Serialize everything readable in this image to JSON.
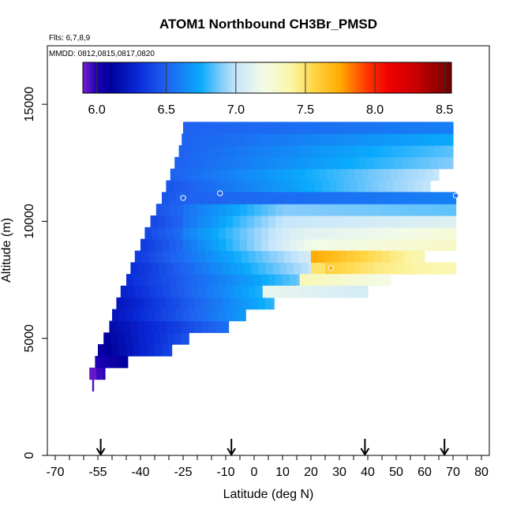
{
  "chart_data": {
    "type": "heatmap",
    "title": "ATOM1 Northbound CH3Br_PMSD",
    "flights_label": "Flts: 6,7,8,9",
    "dates_label": "MMDD: 0812,0815,0817,0820",
    "xlabel": "Latitude (deg N)",
    "ylabel": "Altitude (m)",
    "xlim": [
      -70,
      80
    ],
    "ylim": [
      0,
      17500
    ],
    "x_ticks": [
      -70,
      -55,
      -40,
      -25,
      -10,
      0,
      10,
      20,
      30,
      40,
      50,
      60,
      70,
      80
    ],
    "x_tick_labels": [
      "-70",
      "-55",
      "-40",
      "-25",
      "-10",
      "0",
      "10",
      "20",
      "30",
      "40",
      "50",
      "60",
      "70",
      "80"
    ],
    "y_ticks": [
      0,
      5000,
      10000,
      15000
    ],
    "y_tick_labels": [
      "0",
      "5000",
      "10000",
      "15000"
    ],
    "colorbar": {
      "min": 5.9,
      "max": 8.55,
      "ticks": [
        6.0,
        6.5,
        7.0,
        7.5,
        8.0,
        8.5
      ],
      "tick_labels": [
        "6.0",
        "6.5",
        "7.0",
        "7.5",
        "8.0",
        "8.5"
      ],
      "colors": [
        {
          "v": 5.9,
          "c": "#7a1fd2"
        },
        {
          "v": 6.0,
          "c": "#1c00b5"
        },
        {
          "v": 6.1,
          "c": "#00009a"
        },
        {
          "v": 6.3,
          "c": "#0a2ad8"
        },
        {
          "v": 6.5,
          "c": "#1f62f0"
        },
        {
          "v": 6.75,
          "c": "#0aaafc"
        },
        {
          "v": 6.9,
          "c": "#86cdfb"
        },
        {
          "v": 7.0,
          "c": "#c8e6fb"
        },
        {
          "v": 7.2,
          "c": "#f3fbe8"
        },
        {
          "v": 7.4,
          "c": "#fbf5a6"
        },
        {
          "v": 7.55,
          "c": "#ffd84a"
        },
        {
          "v": 7.75,
          "c": "#ffaa00"
        },
        {
          "v": 7.95,
          "c": "#ff3300"
        },
        {
          "v": 8.1,
          "c": "#f00000"
        },
        {
          "v": 8.3,
          "c": "#c80000"
        },
        {
          "v": 8.55,
          "c": "#6e0000"
        }
      ]
    },
    "band_height": 500,
    "bands": [
      {
        "alt": 3000,
        "xmin": -57,
        "xmax": -56.5,
        "vL": 5.95,
        "vR": 5.95
      },
      {
        "alt": 3500,
        "xmin": -58,
        "xmax": -52.5,
        "vL": 5.9,
        "vR": 6.0
      },
      {
        "alt": 4000,
        "xmin": -56,
        "xmax": -44.5,
        "vL": 6.0,
        "vR": 6.1
      },
      {
        "alt": 4500,
        "xmin": -55,
        "xmax": -29,
        "vL": 6.05,
        "vR": 6.4
      },
      {
        "alt": 5000,
        "xmin": -53,
        "xmax": -23,
        "vL": 6.1,
        "vR": 6.45
      },
      {
        "alt": 5500,
        "xmin": -51,
        "xmax": -9,
        "vL": 6.15,
        "vR": 6.55
      },
      {
        "alt": 6000,
        "xmin": -50,
        "xmax": -3,
        "vL": 6.2,
        "vR": 6.7
      },
      {
        "alt": 6500,
        "xmin": -48.5,
        "xmax": 7,
        "vL": 6.2,
        "vR": 6.8
      },
      {
        "alt": 7000,
        "xmin": -47,
        "xmax": 14,
        "vL": 6.25,
        "vR": 6.9
      },
      {
        "alt": 7500,
        "xmin": -45,
        "xmax": 25,
        "vL": 6.3,
        "vR": 6.95
      },
      {
        "alt": 8000,
        "xmin": -43.5,
        "xmax": 29,
        "vL": 6.3,
        "vR": 7.1
      },
      {
        "alt": 8500,
        "xmin": -42,
        "xmax": 37,
        "vL": 6.35,
        "vR": 7.25
      },
      {
        "alt": 9000,
        "xmin": -40,
        "xmax": 42,
        "vL": 6.35,
        "vR": 7.3
      },
      {
        "alt": 9500,
        "xmin": -38.5,
        "xmax": 46,
        "vL": 6.4,
        "vR": 7.3
      },
      {
        "alt": 10000,
        "xmin": -36.5,
        "xmax": 52,
        "vL": 6.4,
        "vR": 7.25
      },
      {
        "alt": 10500,
        "xmin": -34.5,
        "xmax": 57,
        "vL": 6.45,
        "vR": 7.2
      },
      {
        "alt": 11000,
        "xmin": -32.5,
        "xmax": 59,
        "vL": 6.45,
        "vR": 7.1
      },
      {
        "alt": 11500,
        "xmin": -31,
        "xmax": 62,
        "vL": 6.45,
        "vR": 7.0
      },
      {
        "alt": 12000,
        "xmin": -29.5,
        "xmax": 65,
        "vL": 6.5,
        "vR": 7.0
      },
      {
        "alt": 12500,
        "xmin": -28,
        "xmax": 70,
        "vL": 6.5,
        "vR": 6.9
      },
      {
        "alt": 13000,
        "xmin": -26.5,
        "xmax": 70,
        "vL": 6.5,
        "vR": 6.85
      },
      {
        "alt": 13500,
        "xmin": -25.5,
        "xmax": 70,
        "vL": 6.5,
        "vR": 6.75
      },
      {
        "alt": 14000,
        "xmin": -25,
        "xmax": 70,
        "vL": 6.5,
        "vR": 6.6
      }
    ],
    "rows": [
      {
        "alt": 9000,
        "xmin": -25,
        "xmax": 71,
        "stops": [
          {
            "x": -25,
            "v": 6.55
          },
          {
            "x": 20,
            "v": 7.2
          },
          {
            "x": 71,
            "v": 7.3
          }
        ]
      },
      {
        "alt": 9500,
        "xmin": -25,
        "xmax": 71,
        "stops": [
          {
            "x": -25,
            "v": 6.6
          },
          {
            "x": 15,
            "v": 7.1
          },
          {
            "x": 71,
            "v": 7.25
          }
        ]
      },
      {
        "alt": 10000,
        "xmin": -25,
        "xmax": 71,
        "stops": [
          {
            "x": -25,
            "v": 6.55
          },
          {
            "x": 10,
            "v": 7.0
          },
          {
            "x": 71,
            "v": 7.1
          }
        ]
      },
      {
        "alt": 10500,
        "xmin": -25,
        "xmax": 71,
        "stops": [
          {
            "x": -25,
            "v": 6.55
          },
          {
            "x": 10,
            "v": 6.9
          },
          {
            "x": 71,
            "v": 6.85
          }
        ]
      },
      {
        "alt": 11000,
        "xmin": -25,
        "xmax": 71,
        "stops": [
          {
            "x": -25,
            "v": 6.5
          },
          {
            "x": 71,
            "v": 6.6
          }
        ]
      }
    ],
    "overlays": [
      {
        "alt": 8000,
        "xmin": 20,
        "xmax": 71,
        "stops": [
          {
            "x": 20,
            "v": 7.5
          },
          {
            "x": 45,
            "v": 7.45
          },
          {
            "x": 71,
            "v": 7.35
          }
        ]
      },
      {
        "alt": 8500,
        "xmin": 20,
        "xmax": 60,
        "stops": [
          {
            "x": 20,
            "v": 7.75
          },
          {
            "x": 35,
            "v": 7.6
          },
          {
            "x": 60,
            "v": 7.35
          }
        ]
      },
      {
        "alt": 8000,
        "xmin": 25,
        "xmax": 45,
        "stops": [
          {
            "x": 25,
            "v": 7.6
          },
          {
            "x": 45,
            "v": 7.45
          }
        ]
      },
      {
        "alt": 7500,
        "xmin": 16,
        "xmax": 48,
        "stops": [
          {
            "x": 16,
            "v": 7.35
          },
          {
            "x": 48,
            "v": 7.2
          }
        ]
      },
      {
        "alt": 7000,
        "xmin": 3,
        "xmax": 40,
        "stops": [
          {
            "x": 3,
            "v": 7.15
          },
          {
            "x": 40,
            "v": 7.05
          }
        ]
      }
    ],
    "points": [
      {
        "x": -25,
        "y": 11000,
        "value": 6.5
      },
      {
        "x": -12,
        "y": 11200,
        "value": 6.5
      },
      {
        "x": 71,
        "y": 11100,
        "value": 6.55
      },
      {
        "x": 27,
        "y": 8000,
        "value": 7.7
      }
    ],
    "flight_markers": [
      -54,
      -8,
      39,
      67
    ]
  }
}
